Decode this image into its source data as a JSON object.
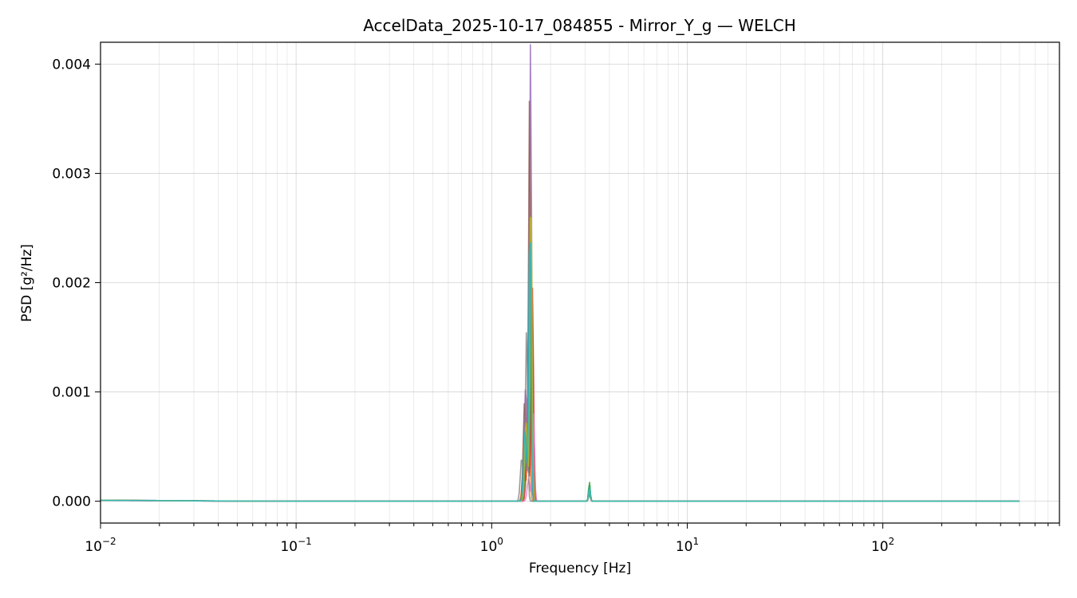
{
  "chart_data": {
    "type": "line",
    "title": "AccelData_2025-10-17_084855 - Mirror_Y_g — WELCH",
    "xlabel": "Frequency [Hz]",
    "ylabel": "PSD [g²/Hz]",
    "xscale": "log",
    "xlim": [
      0.01,
      800
    ],
    "ylim": [
      -0.0002,
      0.0042
    ],
    "grid": true,
    "x_ticks": [
      {
        "value": 0.01,
        "base": "10",
        "exp": "−2"
      },
      {
        "value": 0.1,
        "base": "10",
        "exp": "−1"
      },
      {
        "value": 1,
        "base": "10",
        "exp": "0"
      },
      {
        "value": 10,
        "base": "10",
        "exp": "1"
      },
      {
        "value": 100,
        "base": "10",
        "exp": "2"
      }
    ],
    "y_ticks": [
      {
        "value": 0.0,
        "label": "0.000"
      },
      {
        "value": 0.001,
        "label": "0.001"
      },
      {
        "value": 0.002,
        "label": "0.002"
      },
      {
        "value": 0.003,
        "label": "0.003"
      },
      {
        "value": 0.004,
        "label": "0.004"
      }
    ],
    "series": [
      {
        "color": "#1f77b4",
        "peak": 0.00248,
        "shift": 0.0,
        "harm": 0.00015,
        "base": 1.2e-05
      },
      {
        "color": "#ff7f0e",
        "peak": 0.00142,
        "shift": -0.01,
        "harm": 8e-05,
        "base": 1e-05
      },
      {
        "color": "#2ca02c",
        "peak": 0.00215,
        "shift": 0.005,
        "harm": 0.00018,
        "base": 1.1e-05
      },
      {
        "color": "#d62728",
        "peak": 0.00195,
        "shift": 0.01,
        "harm": 0.00012,
        "base": 9e-06
      },
      {
        "color": "#9467bd",
        "peak": 0.0042,
        "shift": 0.0,
        "harm": 0.0001,
        "base": 1.2e-05
      },
      {
        "color": "#8c564b",
        "peak": 0.0037,
        "shift": -0.005,
        "harm": 9e-05,
        "base": 1e-05
      },
      {
        "color": "#e377c2",
        "peak": 0.0008,
        "shift": 0.015,
        "harm": 7e-05,
        "base": 8e-06
      },
      {
        "color": "#7f7f7f",
        "peak": 0.0016,
        "shift": -0.02,
        "harm": 6e-05,
        "base": 9e-06
      },
      {
        "color": "#bcbd22",
        "peak": 0.00292,
        "shift": 0.002,
        "harm": 0.00011,
        "base": 1.1e-05
      },
      {
        "color": "#17becf",
        "peak": 0.00262,
        "shift": -0.003,
        "harm": 0.00013,
        "base": 1e-05
      }
    ],
    "peak_frequency_hz": 1.58,
    "harmonic_frequency_hz": 3.16,
    "x_max_hz": 500
  }
}
